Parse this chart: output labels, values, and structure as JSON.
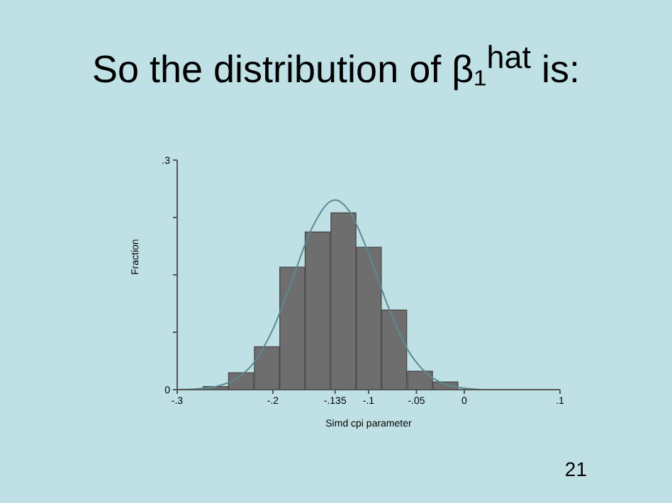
{
  "chart_data": {
    "type": "histogram",
    "title": "So the distribution of β₁$^{hat}$ is:",
    "xlabel": "Simd cpi parameter",
    "ylabel": "Fraction",
    "bins": [
      -0.273,
      -0.247,
      -0.22,
      -0.193,
      -0.167,
      -0.14,
      -0.113,
      -0.087,
      -0.06,
      -0.033,
      -0.007
    ],
    "values": [
      0.004,
      0.022,
      0.056,
      0.16,
      0.206,
      0.231,
      0.186,
      0.104,
      0.024,
      0.01
    ],
    "color": "#6e6e6e",
    "series": [
      {
        "type": "line",
        "color": "#5b8a91",
        "x": [
          -0.3,
          -0.28,
          -0.26,
          -0.24,
          -0.22,
          -0.2,
          -0.18,
          -0.16,
          -0.14,
          -0.135,
          -0.12,
          -0.1,
          -0.08,
          -0.06,
          -0.04,
          -0.02,
          0,
          0.02,
          0.04
        ],
        "values": [
          0,
          0.001,
          0.004,
          0.013,
          0.035,
          0.079,
          0.143,
          0.209,
          0.246,
          0.248,
          0.233,
          0.178,
          0.11,
          0.054,
          0.022,
          0.007,
          0.002,
          0,
          0
        ]
      }
    ],
    "xlim": [
      -0.3,
      0.1
    ],
    "xticks": [
      {
        "value": -0.3,
        "label": "-.3"
      },
      {
        "value": -0.2,
        "label": "-.2"
      },
      {
        "value": -0.135,
        "label": "-.135"
      },
      {
        "value": -0.1,
        "label": "-.1"
      },
      {
        "value": -0.05,
        "label": "-.05"
      },
      0,
      {
        "value": 0.1,
        "label": ".1"
      }
    ],
    "ylim": [
      0,
      0.3
    ],
    "yticks": [
      0,
      {
        "value": 0.075,
        "label": null
      },
      {
        "value": 0.15,
        "label": null
      },
      {
        "value": 0.225,
        "label": null
      },
      {
        "value": 0.3,
        "label": ".3"
      }
    ],
    "grid": false,
    "legend": false,
    "marker": "none",
    "line_style": "solid",
    "annotations": [
      "21"
    ]
  }
}
